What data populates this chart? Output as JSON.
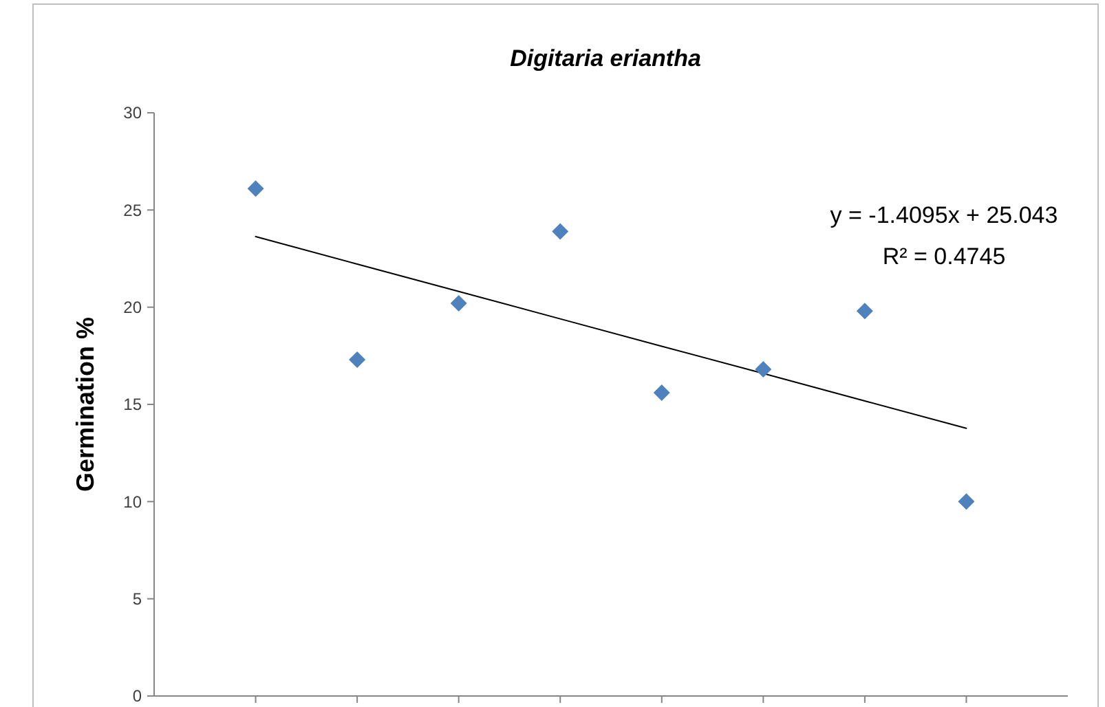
{
  "chart_data": {
    "type": "scatter",
    "title": "Digitaria eriantha",
    "ylabel": "Germination %",
    "categories": [
      null,
      null,
      null,
      null,
      null,
      null,
      null,
      null
    ],
    "ylim": [
      0,
      30
    ],
    "yticks": [
      0,
      5,
      10,
      15,
      20,
      25,
      30
    ],
    "tick_labels": "y",
    "grid": false,
    "series": [
      {
        "marker": "diamond",
        "color": "#4f81bd",
        "values": [
          26.1,
          17.3,
          20.2,
          23.9,
          15.6,
          16.8,
          19.8,
          10.0
        ]
      },
      {
        "type": "line",
        "marker": "none",
        "color": "#000000",
        "values": [
          23.63,
          22.22,
          20.81,
          19.4,
          17.99,
          16.59,
          15.18,
          13.77
        ]
      }
    ],
    "annotations": [
      "y = -1.4095x + 25.043",
      "R² = 0.4745"
    ]
  }
}
